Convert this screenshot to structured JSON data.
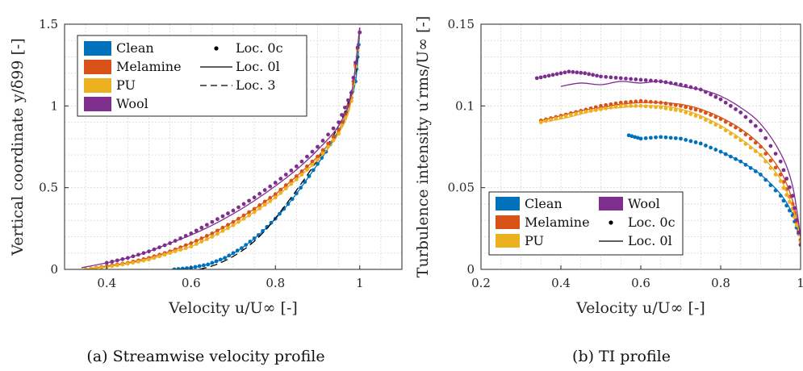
{
  "colors": {
    "Clean": "#0072bd",
    "Melamine": "#d95319",
    "PU": "#edb120",
    "Wool": "#7e2f8e"
  },
  "legend_entries": {
    "clean": "Clean",
    "melamine": "Melamine",
    "pu": "PU",
    "wool": "Wool",
    "loc0c": "Loc. 0c",
    "loc0l": "Loc. 0l",
    "loc3": "Loc. 3"
  },
  "chart_data": [
    {
      "type": "line",
      "caption": "(a) Streamwise velocity profile",
      "xlabel": "Velocity u/U∞ [-]",
      "ylabel": "Vertical coordinate y/δ99 [-]",
      "xlim": [
        0.3,
        1.1
      ],
      "ylim": [
        0,
        1.5
      ],
      "xticks": [
        "0.4",
        "0.6",
        "0.8",
        "1"
      ],
      "xtick_values": [
        0.4,
        0.6,
        0.8,
        1.0
      ],
      "yticks": [
        "0",
        "0.5",
        "1",
        "1.5"
      ],
      "ytick_values": [
        0,
        0.5,
        1.0,
        1.5
      ],
      "grid": true,
      "legend_position": "top-left",
      "series": [
        {
          "name": "Clean",
          "marker": "Loc. 0c",
          "x": [
            0.56,
            0.6,
            0.64,
            0.68,
            0.72,
            0.76,
            0.8,
            0.84,
            0.88,
            0.92,
            0.96,
            0.99,
            1.0
          ],
          "y": [
            0.0,
            0.01,
            0.03,
            0.07,
            0.13,
            0.21,
            0.31,
            0.43,
            0.57,
            0.72,
            0.9,
            1.15,
            1.45
          ]
        },
        {
          "name": "Clean",
          "line": "Loc. 0l",
          "x": [
            0.56,
            0.6,
            0.64,
            0.68,
            0.72,
            0.76,
            0.8,
            0.84,
            0.88,
            0.92,
            0.96,
            0.99,
            1.0
          ],
          "y": [
            0.0,
            0.01,
            0.03,
            0.07,
            0.13,
            0.21,
            0.31,
            0.43,
            0.57,
            0.72,
            0.9,
            1.15,
            1.48
          ]
        },
        {
          "name": "Clean",
          "line": "Loc. 3",
          "x": [
            0.62,
            0.66,
            0.7,
            0.74,
            0.78,
            0.82,
            0.86,
            0.9,
            0.94,
            0.97,
            0.99,
            1.0
          ],
          "y": [
            0.0,
            0.03,
            0.08,
            0.15,
            0.25,
            0.38,
            0.52,
            0.67,
            0.83,
            1.0,
            1.2,
            1.48
          ]
        },
        {
          "name": "Melamine",
          "marker": "Loc. 0c",
          "x": [
            0.35,
            0.4,
            0.45,
            0.5,
            0.55,
            0.6,
            0.65,
            0.7,
            0.75,
            0.8,
            0.85,
            0.9,
            0.95,
            0.98,
            1.0
          ],
          "y": [
            0.0,
            0.02,
            0.04,
            0.07,
            0.11,
            0.16,
            0.22,
            0.29,
            0.37,
            0.46,
            0.57,
            0.69,
            0.85,
            1.05,
            1.45
          ]
        },
        {
          "name": "Melamine",
          "line": "Loc. 0l",
          "x": [
            0.35,
            0.4,
            0.45,
            0.5,
            0.55,
            0.6,
            0.65,
            0.7,
            0.75,
            0.8,
            0.85,
            0.9,
            0.95,
            0.98,
            1.0
          ],
          "y": [
            0.0,
            0.02,
            0.04,
            0.07,
            0.11,
            0.16,
            0.22,
            0.29,
            0.37,
            0.46,
            0.57,
            0.69,
            0.85,
            1.05,
            1.48
          ]
        },
        {
          "name": "PU",
          "marker": "Loc. 0c",
          "x": [
            0.35,
            0.4,
            0.45,
            0.5,
            0.55,
            0.6,
            0.65,
            0.7,
            0.75,
            0.8,
            0.85,
            0.9,
            0.95,
            0.98,
            1.0
          ],
          "y": [
            0.0,
            0.015,
            0.035,
            0.06,
            0.1,
            0.14,
            0.2,
            0.27,
            0.35,
            0.44,
            0.55,
            0.67,
            0.83,
            1.03,
            1.45
          ]
        },
        {
          "name": "PU",
          "line": "Loc. 0l",
          "x": [
            0.35,
            0.4,
            0.45,
            0.5,
            0.55,
            0.6,
            0.65,
            0.7,
            0.75,
            0.8,
            0.85,
            0.9,
            0.95,
            0.98,
            1.0
          ],
          "y": [
            0.0,
            0.015,
            0.035,
            0.06,
            0.1,
            0.14,
            0.2,
            0.27,
            0.35,
            0.44,
            0.55,
            0.67,
            0.83,
            1.03,
            1.48
          ]
        },
        {
          "name": "Wool",
          "marker": "Loc. 0c",
          "x": [
            0.4,
            0.45,
            0.5,
            0.55,
            0.6,
            0.65,
            0.7,
            0.75,
            0.8,
            0.85,
            0.9,
            0.95,
            0.98,
            1.0
          ],
          "y": [
            0.04,
            0.07,
            0.11,
            0.16,
            0.22,
            0.29,
            0.36,
            0.44,
            0.53,
            0.63,
            0.75,
            0.9,
            1.08,
            1.45
          ]
        },
        {
          "name": "Wool",
          "line": "Loc. 0l",
          "x": [
            0.34,
            0.4,
            0.45,
            0.5,
            0.55,
            0.6,
            0.65,
            0.7,
            0.75,
            0.8,
            0.85,
            0.9,
            0.95,
            0.98,
            1.0
          ],
          "y": [
            0.01,
            0.04,
            0.07,
            0.11,
            0.16,
            0.21,
            0.27,
            0.34,
            0.42,
            0.51,
            0.61,
            0.73,
            0.88,
            1.07,
            1.48
          ]
        }
      ]
    },
    {
      "type": "line",
      "caption": "(b) TI profile",
      "xlabel": "Velocity u/U∞ [-]",
      "ylabel": "Turbulence intensity u′rms/U∞ [-]",
      "xlim": [
        0.2,
        1.0
      ],
      "ylim": [
        0,
        0.15
      ],
      "xticks": [
        "0.2",
        "0.4",
        "0.6",
        "0.8",
        "1"
      ],
      "xtick_values": [
        0.2,
        0.4,
        0.6,
        0.8,
        1.0
      ],
      "yticks": [
        "0",
        "0.05",
        "0.1",
        "0.15"
      ],
      "ytick_values": [
        0,
        0.05,
        0.1,
        0.15
      ],
      "grid": true,
      "legend_position": "bottom-center",
      "series": [
        {
          "name": "Clean",
          "marker": "Loc. 0c",
          "x": [
            0.57,
            0.6,
            0.65,
            0.7,
            0.75,
            0.8,
            0.85,
            0.9,
            0.95,
            0.98,
            1.0
          ],
          "y": [
            0.082,
            0.08,
            0.081,
            0.08,
            0.077,
            0.072,
            0.066,
            0.058,
            0.045,
            0.033,
            0.018
          ]
        },
        {
          "name": "Clean",
          "line": "Loc. 0l",
          "x": [
            0.8,
            0.85,
            0.9,
            0.95,
            0.98,
            1.0
          ],
          "y": [
            0.072,
            0.066,
            0.058,
            0.046,
            0.034,
            0.02
          ]
        },
        {
          "name": "Melamine",
          "marker": "Loc. 0c",
          "x": [
            0.35,
            0.4,
            0.45,
            0.5,
            0.55,
            0.6,
            0.65,
            0.7,
            0.75,
            0.8,
            0.85,
            0.9,
            0.95,
            0.98,
            1.0
          ],
          "y": [
            0.091,
            0.094,
            0.097,
            0.1,
            0.102,
            0.103,
            0.102,
            0.1,
            0.097,
            0.092,
            0.085,
            0.075,
            0.058,
            0.04,
            0.018
          ]
        },
        {
          "name": "Melamine",
          "line": "Loc. 0l",
          "x": [
            0.35,
            0.4,
            0.45,
            0.5,
            0.55,
            0.6,
            0.65,
            0.7,
            0.75,
            0.8,
            0.85,
            0.9,
            0.95,
            0.98,
            1.0
          ],
          "y": [
            0.091,
            0.094,
            0.097,
            0.099,
            0.101,
            0.102,
            0.102,
            0.101,
            0.098,
            0.093,
            0.086,
            0.076,
            0.06,
            0.042,
            0.02
          ]
        },
        {
          "name": "PU",
          "marker": "Loc. 0c",
          "x": [
            0.35,
            0.4,
            0.45,
            0.5,
            0.55,
            0.6,
            0.65,
            0.7,
            0.75,
            0.8,
            0.85,
            0.9,
            0.95,
            0.98,
            1.0
          ],
          "y": [
            0.09,
            0.093,
            0.096,
            0.098,
            0.1,
            0.1,
            0.099,
            0.097,
            0.093,
            0.087,
            0.079,
            0.07,
            0.054,
            0.037,
            0.017
          ]
        },
        {
          "name": "PU",
          "line": "Loc. 0l",
          "x": [
            0.35,
            0.4,
            0.45,
            0.5,
            0.55,
            0.6,
            0.65,
            0.7,
            0.75,
            0.8,
            0.85,
            0.9,
            0.95,
            0.98,
            1.0
          ],
          "y": [
            0.09,
            0.092,
            0.095,
            0.098,
            0.099,
            0.1,
            0.1,
            0.098,
            0.094,
            0.088,
            0.08,
            0.07,
            0.055,
            0.038,
            0.019
          ]
        },
        {
          "name": "Wool",
          "marker": "Loc. 0c",
          "x": [
            0.34,
            0.38,
            0.42,
            0.46,
            0.5,
            0.55,
            0.6,
            0.65,
            0.7,
            0.75,
            0.8,
            0.85,
            0.9,
            0.95,
            0.98,
            1.0
          ],
          "y": [
            0.117,
            0.119,
            0.121,
            0.12,
            0.118,
            0.117,
            0.116,
            0.115,
            0.113,
            0.11,
            0.104,
            0.096,
            0.085,
            0.066,
            0.045,
            0.015
          ]
        },
        {
          "name": "Wool",
          "line": "Loc. 0l",
          "x": [
            0.4,
            0.45,
            0.5,
            0.55,
            0.6,
            0.65,
            0.7,
            0.75,
            0.8,
            0.85,
            0.9,
            0.95,
            0.98,
            1.0
          ],
          "y": [
            0.112,
            0.114,
            0.113,
            0.115,
            0.114,
            0.115,
            0.112,
            0.11,
            0.106,
            0.099,
            0.089,
            0.071,
            0.051,
            0.02
          ]
        }
      ]
    }
  ]
}
